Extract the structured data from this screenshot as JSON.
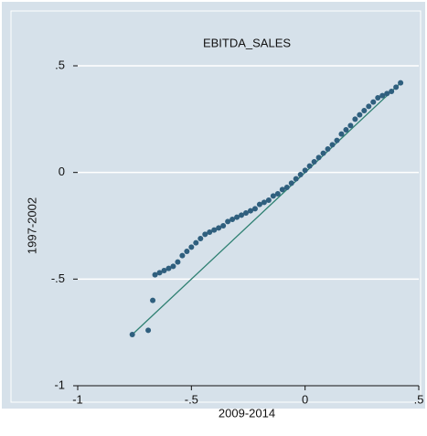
{
  "chart_data": {
    "type": "scatter",
    "title": "EBITDA_SALES",
    "x_label": "2009-2014",
    "y_label": "1997-2002",
    "x": [
      -0.76,
      -0.69,
      -0.67,
      -0.66,
      -0.64,
      -0.62,
      -0.6,
      -0.58,
      -0.56,
      -0.54,
      -0.52,
      -0.5,
      -0.48,
      -0.46,
      -0.44,
      -0.42,
      -0.4,
      -0.38,
      -0.36,
      -0.34,
      -0.32,
      -0.3,
      -0.28,
      -0.26,
      -0.24,
      -0.22,
      -0.2,
      -0.18,
      -0.16,
      -0.14,
      -0.12,
      -0.1,
      -0.08,
      -0.06,
      -0.04,
      -0.02,
      0,
      0.02,
      0.04,
      0.06,
      0.08,
      0.1,
      0.12,
      0.14,
      0.16,
      0.18,
      0.2,
      0.22,
      0.24,
      0.26,
      0.28,
      0.3,
      0.32,
      0.34,
      0.36,
      0.38,
      0.4,
      0.42
    ],
    "y": [
      -0.76,
      -0.74,
      -0.6,
      -0.48,
      -0.47,
      -0.46,
      -0.45,
      -0.44,
      -0.42,
      -0.39,
      -0.37,
      -0.35,
      -0.33,
      -0.31,
      -0.29,
      -0.28,
      -0.27,
      -0.26,
      -0.25,
      -0.23,
      -0.22,
      -0.21,
      -0.2,
      -0.19,
      -0.18,
      -0.17,
      -0.15,
      -0.14,
      -0.13,
      -0.11,
      -0.1,
      -0.08,
      -0.07,
      -0.05,
      -0.03,
      -0.01,
      0.01,
      0.03,
      0.05,
      0.07,
      0.09,
      0.11,
      0.13,
      0.15,
      0.18,
      0.2,
      0.22,
      0.25,
      0.27,
      0.29,
      0.31,
      0.33,
      0.35,
      0.36,
      0.37,
      0.38,
      0.4,
      0.42
    ],
    "color": "#2f5f7e",
    "reference_line": {
      "x": [
        -0.76,
        0.42
      ],
      "y": [
        -0.76,
        0.42
      ],
      "color": "#2e8072"
    },
    "xlim": [
      -1,
      0.5
    ],
    "ylim": [
      -1,
      0.5
    ],
    "xticks": [
      -1,
      {
        "value": -0.5,
        "label": "-.5"
      },
      0,
      {
        "value": 0.5,
        "label": ".5"
      }
    ],
    "yticks": [
      -1,
      {
        "value": -0.5,
        "label": "-.5"
      },
      0,
      {
        "value": 0.5,
        "label": ".5"
      }
    ],
    "grid": true
  }
}
